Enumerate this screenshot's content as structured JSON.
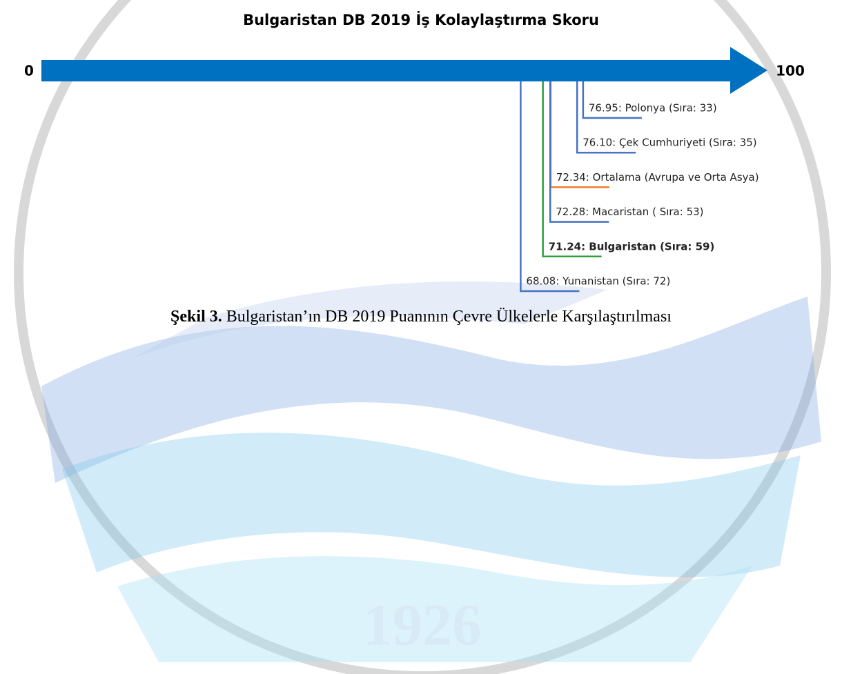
{
  "document": {
    "chart_data": {
      "type": "number-line",
      "title": "Bulgaristan DB 2019 İş Kolaylaştırma Skoru",
      "color": "#0070c0",
      "xlim": [
        0,
        100
      ],
      "xticks": [
        0,
        100
      ],
      "points": [
        {
          "value": 76.95,
          "value_label": "76.95: Polonya (Sıra: 33)",
          "color": "#4472c4",
          "bold": false
        },
        {
          "value": 76.1,
          "value_label": "76.10: Çek Cumhuriyeti (Sıra: 35)",
          "color": "#4472c4",
          "bold": false
        },
        {
          "value": 72.34,
          "value_label": "72.34: Ortalama (Avrupa ve Orta Asya)",
          "color": "#ed7d31",
          "bold": false
        },
        {
          "value": 72.28,
          "value_label": "72.28: Macaristan ( Sıra: 53)",
          "color": "#4472c4",
          "bold": false
        },
        {
          "value": 71.24,
          "value_label": "71.24: Bulgaristan (Sıra: 59)",
          "color": "#2e9e3a",
          "bold": true
        },
        {
          "value": 68.08,
          "value_label": "68.08: Yunanistan (Sıra: 72)",
          "color": "#4472c4",
          "bold": false
        }
      ]
    },
    "caption": {
      "label": "Şekil 3.",
      "text": "Bulgaristan’ın DB 2019 Puanının Çevre Ülkelerle Karşılaştırılması"
    },
    "watermark": "1926"
  }
}
